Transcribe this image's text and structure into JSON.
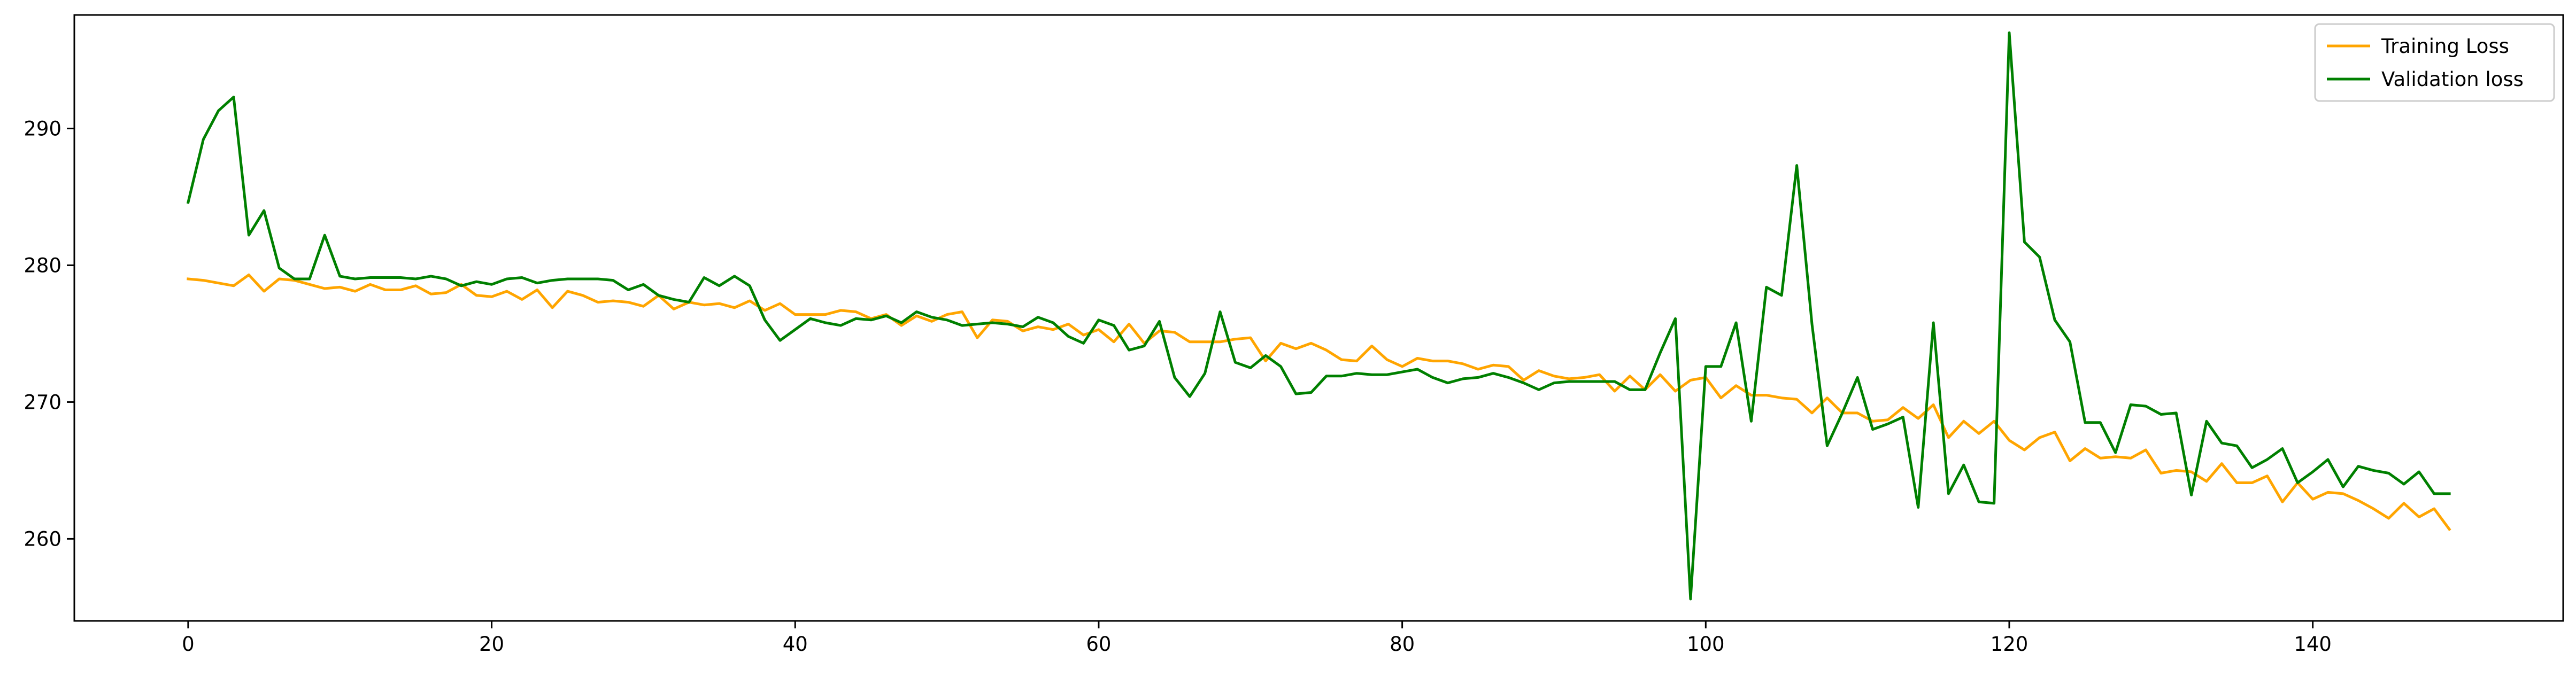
{
  "chart_data": {
    "type": "line",
    "title": "",
    "xlabel": "",
    "ylabel": "",
    "xlim": [
      -7.5,
      156.5
    ],
    "ylim": [
      254.0,
      298.3
    ],
    "xticks": [
      0,
      20,
      40,
      60,
      80,
      100,
      120,
      140
    ],
    "yticks": [
      260,
      270,
      280,
      290
    ],
    "xtick_labels": [
      "0",
      "20",
      "40",
      "60",
      "80",
      "100",
      "120",
      "140"
    ],
    "ytick_labels": [
      "260",
      "270",
      "280",
      "290"
    ],
    "grid": false,
    "legend_position": "top-right",
    "series": [
      {
        "name": "Training Loss",
        "color": "#ffa500",
        "values": [
          279.0,
          278.9,
          278.7,
          278.5,
          279.3,
          278.1,
          279.0,
          278.9,
          278.6,
          278.3,
          278.4,
          278.1,
          278.6,
          278.2,
          278.2,
          278.5,
          277.9,
          278.0,
          278.6,
          277.8,
          277.7,
          278.1,
          277.5,
          278.2,
          276.9,
          278.1,
          277.8,
          277.3,
          277.4,
          277.3,
          277.0,
          277.8,
          276.8,
          277.3,
          277.1,
          277.2,
          276.9,
          277.4,
          276.7,
          277.2,
          276.4,
          276.4,
          276.4,
          276.7,
          276.6,
          276.1,
          276.4,
          275.6,
          276.3,
          275.9,
          276.4,
          276.6,
          274.7,
          276.0,
          275.9,
          275.2,
          275.5,
          275.3,
          275.7,
          274.9,
          275.3,
          274.4,
          275.7,
          274.3,
          275.2,
          275.1,
          274.4,
          274.4,
          274.4,
          274.6,
          274.7,
          273.0,
          274.3,
          273.9,
          274.3,
          273.8,
          273.1,
          273.0,
          274.1,
          273.1,
          272.6,
          273.2,
          273.0,
          273.0,
          272.8,
          272.4,
          272.7,
          272.6,
          271.6,
          272.3,
          271.9,
          271.7,
          271.8,
          272.0,
          270.8,
          271.9,
          270.9,
          272.0,
          270.8,
          271.6,
          271.8,
          270.3,
          271.2,
          270.5,
          270.5,
          270.3,
          270.2,
          269.2,
          270.3,
          269.2,
          269.2,
          268.6,
          268.7,
          269.6,
          268.8,
          269.8,
          267.4,
          268.6,
          267.7,
          268.6,
          267.2,
          266.5,
          267.4,
          267.8,
          265.7,
          266.6,
          265.9,
          266.0,
          265.9,
          266.5,
          264.8,
          265.0,
          264.9,
          264.2,
          265.5,
          264.1,
          264.1,
          264.6,
          262.7,
          264.1,
          262.9,
          263.4,
          263.3,
          262.8,
          262.2,
          261.5,
          262.6,
          261.6,
          262.2,
          260.7
        ]
      },
      {
        "name": "Validation loss",
        "color": "#008000",
        "values": [
          284.6,
          289.2,
          291.3,
          292.3,
          282.2,
          284.0,
          279.8,
          279.0,
          279.0,
          282.2,
          279.2,
          279.0,
          279.1,
          279.1,
          279.1,
          279.0,
          279.2,
          279.0,
          278.5,
          278.8,
          278.6,
          279.0,
          279.1,
          278.7,
          278.9,
          279.0,
          279.0,
          279.0,
          278.9,
          278.2,
          278.6,
          277.8,
          277.5,
          277.3,
          279.1,
          278.5,
          279.2,
          278.5,
          276.0,
          274.5,
          275.3,
          276.1,
          275.8,
          275.6,
          276.1,
          276.0,
          276.3,
          275.8,
          276.6,
          276.2,
          276.0,
          275.6,
          275.7,
          275.8,
          275.7,
          275.5,
          276.2,
          275.8,
          274.8,
          274.3,
          276.0,
          275.6,
          273.8,
          274.1,
          275.9,
          271.8,
          270.4,
          272.1,
          276.6,
          272.9,
          272.5,
          273.4,
          272.6,
          270.6,
          270.7,
          271.9,
          271.9,
          272.1,
          272.0,
          272.0,
          272.2,
          272.4,
          271.8,
          271.4,
          271.7,
          271.8,
          272.1,
          271.8,
          271.4,
          270.9,
          271.4,
          271.5,
          271.5,
          271.5,
          271.5,
          270.9,
          270.9,
          273.6,
          276.1,
          255.6,
          272.6,
          272.6,
          275.8,
          268.6,
          278.4,
          277.8,
          287.3,
          275.7,
          266.8,
          269.2,
          271.8,
          268.0,
          268.4,
          268.9,
          262.3,
          275.8,
          263.3,
          265.4,
          262.7,
          262.6,
          297.0,
          281.7,
          280.6,
          276.0,
          274.4,
          268.5,
          268.5,
          266.3,
          269.8,
          269.7,
          269.1,
          269.2,
          263.2,
          268.6,
          267.0,
          266.8,
          265.2,
          265.8,
          266.6,
          264.1,
          264.9,
          265.8,
          263.8,
          265.3,
          265.0,
          264.8,
          264.0,
          264.9,
          263.3,
          263.3
        ]
      }
    ]
  }
}
